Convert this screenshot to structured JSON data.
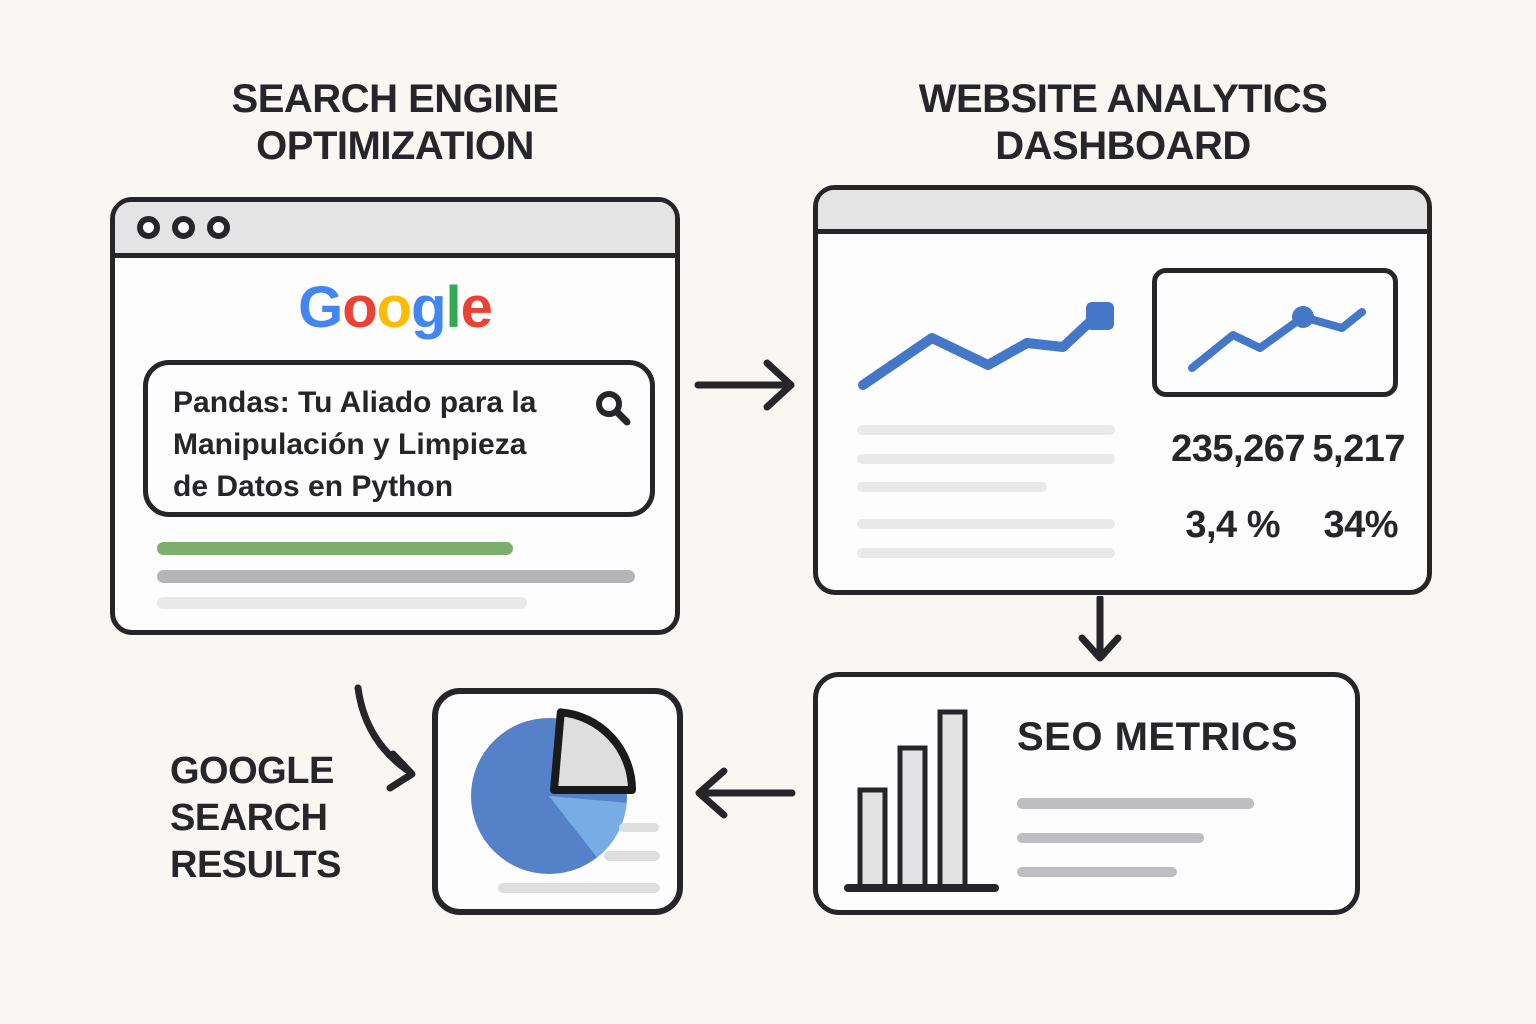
{
  "colors": {
    "background": "#F8F7F4",
    "ink": "#26262A",
    "chrome_gray": "#E4E4E4",
    "accent_blue": "#4477C8",
    "pie_blue": "#5581C8",
    "pie_light_blue": "#77ACE4",
    "pie_gray": "#DEDEDE",
    "green_bar": "#7CAF6B",
    "gray_bar": "#B4B4B9",
    "light_bar": "#E9E9E9",
    "mid_bar": "#BEBEC2"
  },
  "titles": {
    "left": {
      "line1": "SEARCH ENGINE",
      "line2": "OPTIMIZATION"
    },
    "right": {
      "line1": "WEBSITE ANALYTICS",
      "line2": "DASHBOARD"
    }
  },
  "google_window": {
    "logo_letters": [
      {
        "char": "G",
        "color": "#4285F4"
      },
      {
        "char": "o",
        "color": "#EA4335"
      },
      {
        "char": "o",
        "color": "#FBBC05"
      },
      {
        "char": "g",
        "color": "#4285F4"
      },
      {
        "char": "l",
        "color": "#34A853"
      },
      {
        "char": "e",
        "color": "#EA4335"
      }
    ],
    "search_query_lines": [
      "Pandas: Tu Aliado para la",
      "Manipulación y Limpieza",
      "de Datos en Python"
    ]
  },
  "analytics_window": {
    "stats": [
      "235,267",
      "5,217",
      "3,4 %",
      "34%"
    ]
  },
  "seo_metrics": {
    "title": "SEO METRICS"
  },
  "results_label": {
    "line1": "GOOGLE",
    "line2": "SEARCH",
    "line3": "RESULTS"
  }
}
